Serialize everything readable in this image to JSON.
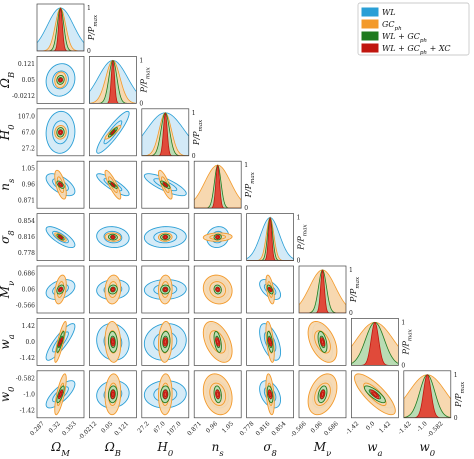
{
  "chart_data": {
    "type": "corner",
    "parameters": [
      {
        "label": "Ω_M",
        "label_main": "Ω",
        "label_sub": "M",
        "ticks": [
          "0.287",
          "0.32",
          "0.353"
        ],
        "tick_values": [
          0.287,
          0.32,
          0.353
        ],
        "center": 0.32
      },
      {
        "label": "Ω_B",
        "label_main": "Ω",
        "label_sub": "B",
        "ticks": [
          "-0.0212",
          "0.05",
          "0.121"
        ],
        "tick_values": [
          -0.0212,
          0.05,
          0.121
        ],
        "center": 0.05
      },
      {
        "label": "H_0",
        "label_main": "H",
        "label_sub": "0",
        "ticks": [
          "27.2",
          "67.0",
          "107.0"
        ],
        "tick_values": [
          27.2,
          67.0,
          107.0
        ],
        "center": 67.0
      },
      {
        "label": "n_s",
        "label_main": "n",
        "label_sub": "s",
        "ticks": [
          "0.871",
          "0.96",
          "1.05"
        ],
        "tick_values": [
          0.871,
          0.96,
          1.05
        ],
        "center": 0.96
      },
      {
        "label": "σ_8",
        "label_main": "σ",
        "label_sub": "8",
        "ticks": [
          "0.778",
          "0.816",
          "0.854"
        ],
        "tick_values": [
          0.778,
          0.816,
          0.854
        ],
        "center": 0.816
      },
      {
        "label": "M_ν",
        "label_main": "M",
        "label_sub": "ν",
        "ticks": [
          "-0.566",
          "0.06",
          "0.686"
        ],
        "tick_values": [
          -0.566,
          0.06,
          0.686
        ],
        "center": 0.06
      },
      {
        "label": "w_a",
        "label_main": "w",
        "label_sub": "a",
        "ticks": [
          "-1.42",
          "0.0",
          "1.42"
        ],
        "tick_values": [
          -1.42,
          0.0,
          1.42
        ],
        "center": 0.0
      },
      {
        "label": "w_0",
        "label_main": "w",
        "label_sub": "0",
        "ticks": [
          "-1.42",
          "-1.0",
          "-0.582"
        ],
        "tick_values": [
          -1.42,
          -1.0,
          -0.582
        ],
        "center": -1.0
      }
    ],
    "diag_ylabel": {
      "main": "P/P",
      "sub": "max"
    },
    "diag_ylim_ticks": [
      "0",
      "1"
    ],
    "series": [
      {
        "name": "WL",
        "name_main": "WL",
        "name_sub": "",
        "name_tail": "",
        "color": "#2a9fd6",
        "fill": "#d3eaf7"
      },
      {
        "name": "GC_ph",
        "name_main": "GC",
        "name_sub": "ph",
        "name_tail": "",
        "color": "#f39a2b",
        "fill": "#f7d8b0"
      },
      {
        "name": "WL + GC_ph",
        "name_main": "WL + GC",
        "name_sub": "ph",
        "name_tail": "",
        "color": "#1f7a1f",
        "fill": "#b9dcb4"
      },
      {
        "name": "WL + GC_ph + XC",
        "name_main": "WL + GC",
        "name_sub": "ph",
        "name_tail": " + XC",
        "color": "#c0160e",
        "fill": "#e04a3a"
      }
    ],
    "widths": {
      "WL": [
        0.55,
        0.62,
        0.8,
        0.42,
        0.4,
        0.38,
        0.7,
        0.52
      ],
      "GC_ph": [
        0.22,
        0.3,
        0.26,
        0.55,
        0.16,
        0.55,
        0.78,
        0.78
      ],
      "WL + GC_ph": [
        0.14,
        0.17,
        0.18,
        0.14,
        0.11,
        0.17,
        0.4,
        0.32
      ],
      "WL + GC_ph + XC": [
        0.08,
        0.07,
        0.08,
        0.08,
        0.07,
        0.08,
        0.16,
        0.16
      ]
    },
    "correlations": [
      [
        1.0,
        0.1,
        0.05,
        -0.6,
        -0.75,
        0.35,
        0.85,
        0.75
      ],
      [
        0.1,
        1.0,
        0.9,
        -0.85,
        -0.1,
        0.1,
        -0.1,
        0.1
      ],
      [
        0.05,
        0.9,
        1.0,
        -0.8,
        0.05,
        0.05,
        0.1,
        0.05
      ],
      [
        -0.6,
        -0.85,
        -0.8,
        1.0,
        0.1,
        -0.1,
        -0.45,
        -0.2
      ],
      [
        -0.75,
        -0.1,
        0.05,
        0.1,
        1.0,
        -0.55,
        -0.55,
        -0.4
      ],
      [
        0.35,
        0.1,
        0.05,
        -0.1,
        -0.55,
        1.0,
        -0.45,
        0.35
      ],
      [
        0.85,
        -0.1,
        0.1,
        -0.45,
        -0.55,
        -0.45,
        1.0,
        -0.8
      ],
      [
        0.75,
        0.1,
        0.05,
        -0.2,
        -0.4,
        0.35,
        -0.8,
        1.0
      ]
    ],
    "legend_position": "top-right",
    "grid": false
  }
}
